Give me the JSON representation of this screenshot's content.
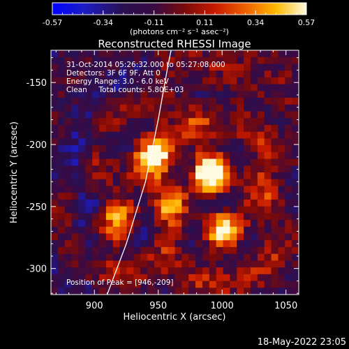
{
  "chart_data": {
    "type": "heatmap",
    "title": "Reconstructed RHESSI Image",
    "xlabel": "Heliocentric X (arcsec)",
    "ylabel": "Heliocentric Y (arcsec)",
    "xlim": [
      866,
      1060
    ],
    "ylim": [
      -321,
      -124
    ],
    "x_ticks": [
      900,
      950,
      1000,
      1050
    ],
    "y_ticks": [
      -150,
      -200,
      -250,
      -300
    ],
    "colorbar": {
      "label": "(photons cm⁻² s⁻¹ asec⁻²)",
      "min": -0.57,
      "max": 0.57,
      "tick_labels": [
        "-0.57",
        "-0.34",
        "-0.11",
        "0.11",
        "0.34",
        "0.57"
      ],
      "colormap": "black-blue-purple-red-orange-yellow-white"
    },
    "annotations": {
      "time_range": "31-Oct-2014 05:26:32.000 to 05:27:08.000",
      "detectors": "Detectors: 3F 6F 9F, Att 0",
      "energy_range": "Energy Range: 3.0 - 6.0 keV",
      "clean": "Clean     Total counts: 5.80E+03",
      "peak": "Position of Peak = [946,-209]"
    },
    "peak_position": [
      946,
      -209
    ],
    "sources": [
      {
        "x": 946,
        "y": -209,
        "value": 0.57
      },
      {
        "x": 993,
        "y": -223,
        "value": 0.55
      },
      {
        "x": 917,
        "y": -262,
        "value": 0.4
      },
      {
        "x": 1000,
        "y": -270,
        "value": 0.33
      }
    ],
    "limb_curve": [
      [
        910,
        -321
      ],
      [
        925,
        -280
      ],
      [
        940,
        -230
      ],
      [
        950,
        -180
      ],
      [
        957,
        -140
      ],
      [
        960,
        -124
      ]
    ]
  },
  "timestamp": "18-May-2022 23:05",
  "colors": {
    "background": "#000000",
    "text": "#ffffff",
    "limb_line": "#ffffff"
  }
}
